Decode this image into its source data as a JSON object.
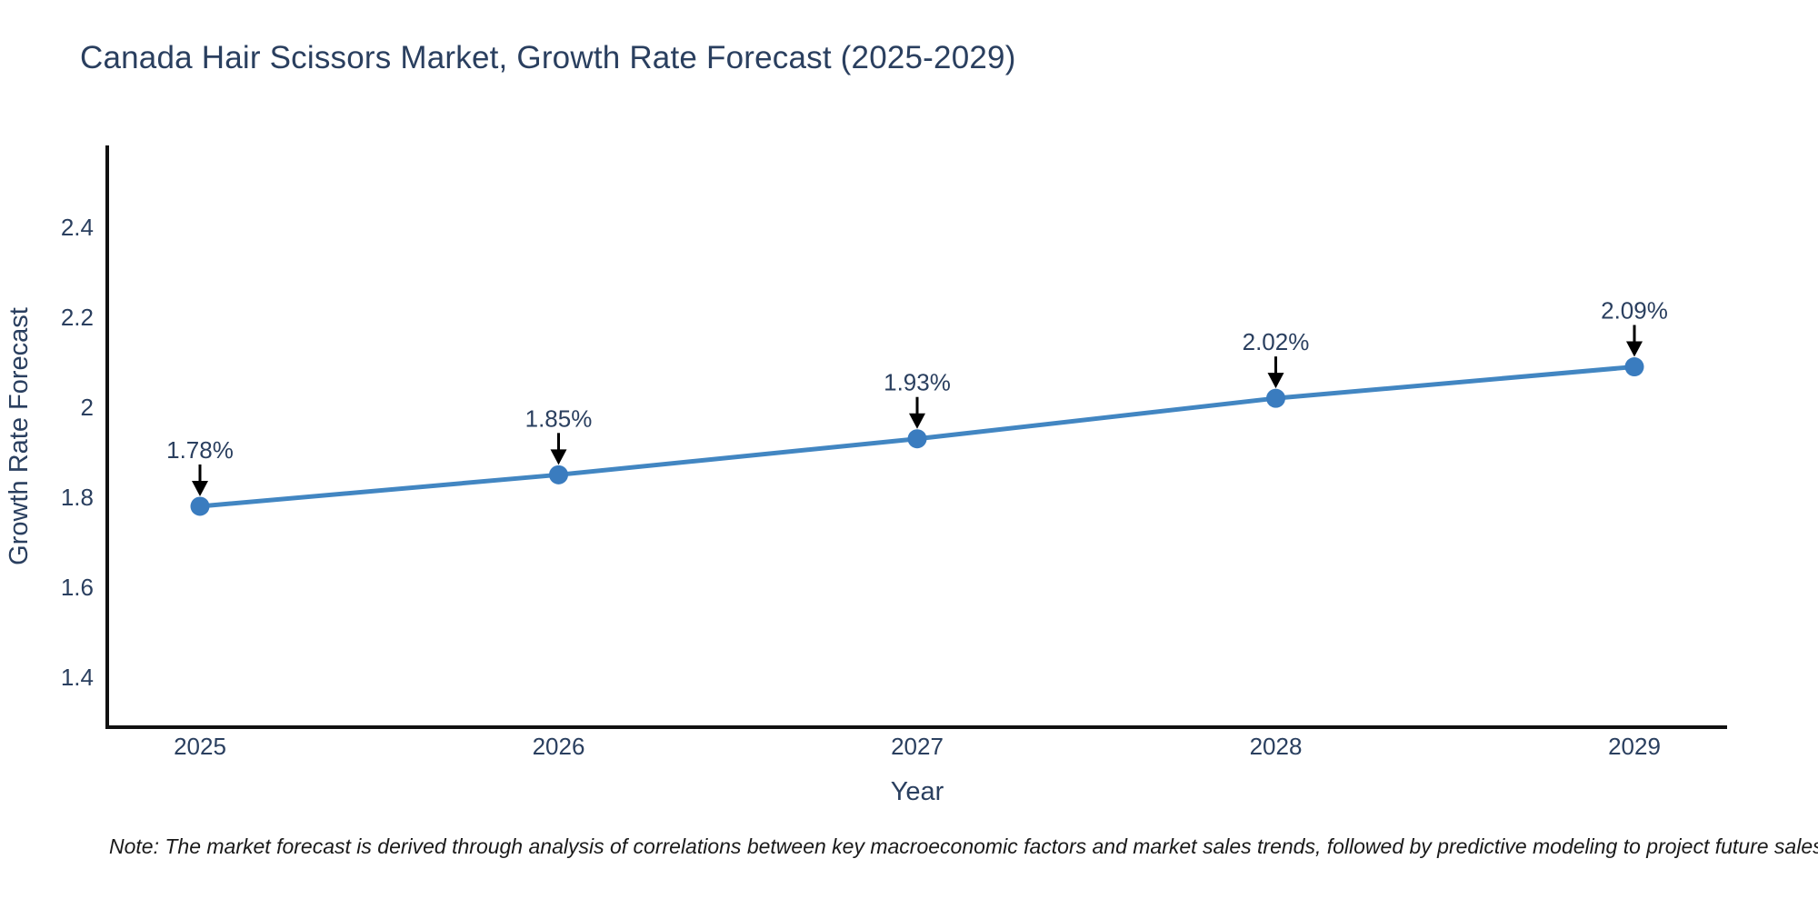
{
  "title": "Canada Hair Scissors Market, Growth Rate Forecast (2025-2029)",
  "note": "Note: The market forecast is derived through analysis of correlations between key macroeconomic factors and market sales trends, followed by predictive modeling to project future sales",
  "colors": {
    "title_text": "#2a3f5f",
    "axis_text": "#2a3f5f",
    "axis_line": "#111111",
    "series_line": "#4286c2",
    "marker_fill": "#3a7cbf",
    "annotation_text": "#2a3f5f",
    "arrow": "#000000",
    "note_text": "#1a1a1a",
    "background": "#ffffff"
  },
  "chart_data": {
    "type": "line",
    "title": "Canada Hair Scissors Market, Growth Rate Forecast (2025-2029)",
    "x": [
      2025,
      2026,
      2027,
      2028,
      2029
    ],
    "x_tick_labels": [
      "2025",
      "2026",
      "2027",
      "2028",
      "2029"
    ],
    "values": [
      1.78,
      1.85,
      1.93,
      2.02,
      2.09
    ],
    "point_labels": [
      "1.78%",
      "1.85%",
      "1.93%",
      "2.02%",
      "2.09%"
    ],
    "xlabel": "Year",
    "ylabel": "Growth Rate Forecast",
    "y_ticks": [
      1.4,
      1.6,
      1.8,
      2,
      2.2,
      2.4
    ],
    "ylim": [
      1.289,
      2.582
    ],
    "xlim": [
      2024.74,
      2029.26
    ],
    "grid": false,
    "legend": "none",
    "annotations": "value labels with downward arrows above each point"
  }
}
